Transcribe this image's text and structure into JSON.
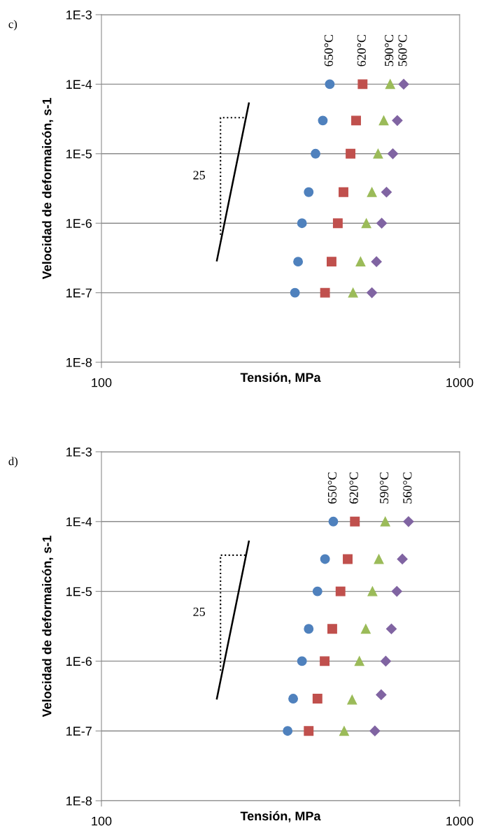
{
  "chart_data": [
    {
      "type": "scatter",
      "title": "c)",
      "xlabel": "Tensión, MPa",
      "ylabel": "Velocidad de deformaicón, s-1",
      "log": "xy",
      "grid": "y",
      "legend": false,
      "xlim": [
        100,
        1000
      ],
      "xticks": [
        100,
        1000
      ],
      "ylim": [
        1e-08,
        0.001
      ],
      "yticks": [
        {
          "value": 1e-08,
          "label": "1E-8"
        },
        {
          "value": 1e-07,
          "label": "1E-7"
        },
        {
          "value": 1e-06,
          "label": "1E-6"
        },
        {
          "value": 1e-05,
          "label": "1E-5"
        },
        {
          "value": 0.0001,
          "label": "1E-4"
        },
        {
          "value": 0.001,
          "label": "1E-3"
        }
      ],
      "annotations": [
        "25"
      ],
      "series": [
        {
          "name": "650°C",
          "color": "#4f81bd",
          "marker": "circle",
          "x": [
            434,
            415,
            396,
            379,
            363,
            354,
            347
          ],
          "values": [
            0.0001,
            3e-05,
            1e-05,
            2.8e-06,
            1e-06,
            2.8e-07,
            1e-07
          ]
        },
        {
          "name": "620°C",
          "color": "#c0504d",
          "marker": "square",
          "x": [
            536,
            514,
            496,
            474,
            457,
            439,
            421
          ],
          "values": [
            0.0001,
            3e-05,
            1e-05,
            2.8e-06,
            1e-06,
            2.8e-07,
            1e-07
          ]
        },
        {
          "name": "590°C",
          "color": "#9bbb59",
          "marker": "triangle",
          "x": [
            640,
            614,
            592,
            569,
            549,
            529,
            504
          ],
          "values": [
            0.0001,
            3e-05,
            1e-05,
            2.8e-06,
            1e-06,
            2.8e-07,
            1e-07
          ]
        },
        {
          "name": "560°C",
          "color": "#8064a2",
          "marker": "diamond",
          "x": [
            698,
            670,
            651,
            625,
            606,
            586,
            569
          ],
          "values": [
            0.0001,
            3e-05,
            1e-05,
            2.8e-06,
            1e-06,
            2.8e-07,
            1e-07
          ]
        },
        {
          "type": "line",
          "color": "#000000",
          "marker": "none",
          "line_style": "solid",
          "x": [
            210,
            258
          ],
          "values": [
            2.9e-07,
            5.3e-05
          ]
        },
        {
          "type": "line",
          "color": "#000000",
          "marker": "none",
          "line_style": "dotted",
          "x": [
            215,
            215,
            254
          ],
          "values": [
            6.8e-07,
            3.3e-05,
            3.3e-05
          ]
        }
      ]
    },
    {
      "type": "scatter",
      "title": "d)",
      "xlabel": "Tensión, MPa",
      "ylabel": "Velocidad de deformaicón, s-1",
      "log": "xy",
      "grid": "y",
      "legend": false,
      "xlim": [
        100,
        1000
      ],
      "xticks": [
        100,
        1000
      ],
      "ylim": [
        1e-08,
        0.001
      ],
      "yticks": [
        {
          "value": 1e-08,
          "label": "1E-8"
        },
        {
          "value": 1e-07,
          "label": "1E-7"
        },
        {
          "value": 1e-06,
          "label": "1E-6"
        },
        {
          "value": 1e-05,
          "label": "1E-5"
        },
        {
          "value": 0.0001,
          "label": "1E-4"
        },
        {
          "value": 0.001,
          "label": "1E-3"
        }
      ],
      "annotations": [
        "25"
      ],
      "series": [
        {
          "name": "650°C",
          "color": "#4f81bd",
          "marker": "circle",
          "x": [
            444,
            421,
            401,
            379,
            363,
            343,
            331
          ],
          "values": [
            0.0001,
            2.9e-05,
            1e-05,
            2.9e-06,
            1e-06,
            2.9e-07,
            1e-07
          ]
        },
        {
          "name": "620°C",
          "color": "#c0504d",
          "marker": "square",
          "x": [
            510,
            487,
            465,
            441,
            420,
            401,
            379
          ],
          "values": [
            0.0001,
            2.9e-05,
            1e-05,
            2.9e-06,
            1e-06,
            2.9e-07,
            1e-07
          ]
        },
        {
          "name": "590°C",
          "color": "#9bbb59",
          "marker": "triangle",
          "x": [
            620,
            595,
            571,
            547,
            525,
            501,
            476
          ],
          "values": [
            0.0001,
            2.9e-05,
            1e-05,
            2.9e-06,
            1e-06,
            2.8e-07,
            1e-07
          ]
        },
        {
          "name": "560°C",
          "color": "#8064a2",
          "marker": "diamond",
          "x": [
            720,
            692,
            668,
            645,
            622,
            604,
            580
          ],
          "values": [
            0.0001,
            2.9e-05,
            1e-05,
            2.9e-06,
            1e-06,
            3.3e-07,
            1e-07
          ]
        },
        {
          "type": "line",
          "color": "#000000",
          "marker": "none",
          "line_style": "solid",
          "x": [
            210,
            258
          ],
          "values": [
            2.9e-07,
            5.2e-05
          ]
        },
        {
          "type": "line",
          "color": "#000000",
          "marker": "none",
          "line_style": "dotted",
          "x": [
            215,
            215,
            253
          ],
          "values": [
            7.3e-07,
            3.3e-05,
            3.3e-05
          ]
        }
      ]
    }
  ]
}
